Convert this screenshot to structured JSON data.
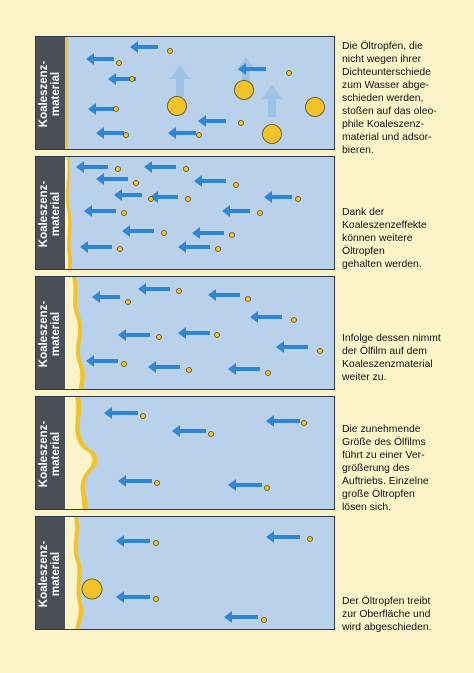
{
  "panels": [
    {
      "label_line1": "Koaleszenz-",
      "label_line2": "material",
      "caption": [
        "Die Öltropfen, die",
        "nicht wegen ihrer",
        "Dichteunterschiede",
        "zum Wasser abge-",
        "schieden werden,",
        "stoßen auf das oleo-",
        "phile Koaleszenz-",
        "material und adsor-",
        "bieren."
      ]
    },
    {
      "label_line1": "Koaleszenz-",
      "label_line2": "material",
      "caption": [
        "Dank der",
        "Koaleszenzeffekte",
        "können weitere",
        "Öltropfen",
        "gehalten werden."
      ]
    },
    {
      "label_line1": "Koaleszenz-",
      "label_line2": "material",
      "caption": [
        "Infolge dessen nimmt",
        "der Ölfilm auf dem",
        "Koaleszenzmaterial",
        "weiter zu."
      ]
    },
    {
      "label_line1": "Koaleszenz-",
      "label_line2": "material",
      "caption": [
        "Die zunehmende",
        "Größe des Ölfilms",
        "führt zu einer Ver-",
        "größerung des",
        "Auftriebs. Einzelne",
        "große Öltropfen",
        "lösen sich."
      ]
    },
    {
      "label_line1": "Koaleszenz-",
      "label_line2": "material",
      "caption": [
        "Der Öltropfen treibt",
        "zur Oberfläche und",
        "wird abgeschieden."
      ]
    }
  ],
  "colors": {
    "background": "#fdf3c8",
    "water": "#b9d1ea",
    "material": "#4a4f58",
    "oil": "#f2c22a",
    "arrow": "#2f86d6",
    "uplift_arrow": "#9dc3e6",
    "coalescer_surface": "#fbf3c9"
  }
}
